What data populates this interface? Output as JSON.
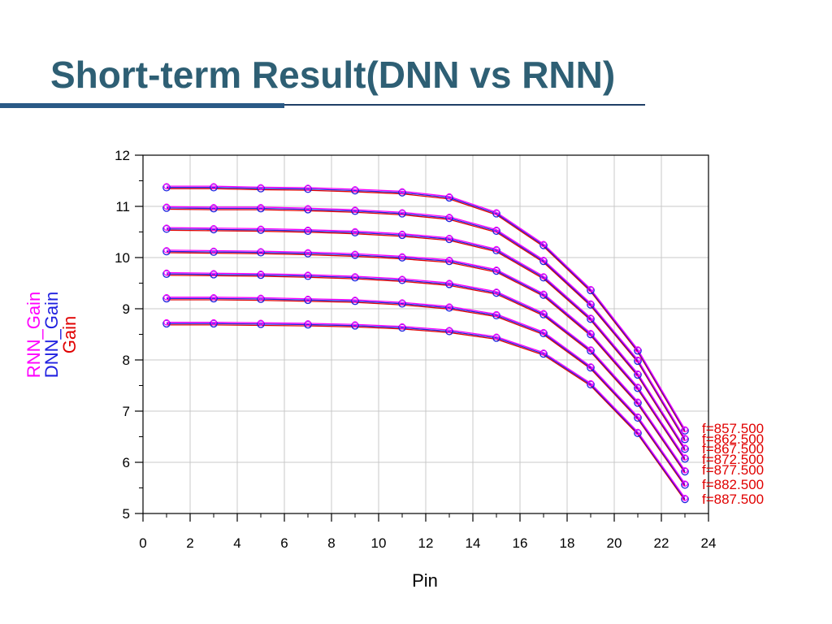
{
  "slide": {
    "title": "Short-term Result(DNN vs RNN)"
  },
  "colors": {
    "title": "#2e5f74",
    "rnn": "#ff00ff",
    "dnn": "#2020e0",
    "gain": "#e00000",
    "grid": "#c8c8c8"
  },
  "chart_data": {
    "type": "line",
    "xlabel": "Pin",
    "ylabel_entries": [
      {
        "text": "RNN_Gain",
        "color": "#ff00ff"
      },
      {
        "text": "DNN_Gain",
        "color": "#2020e0"
      },
      {
        "text": "Gain",
        "color": "#e00000"
      }
    ],
    "xlim": [
      0,
      24
    ],
    "ylim": [
      5,
      12
    ],
    "xticks": [
      0,
      2,
      4,
      6,
      8,
      10,
      12,
      14,
      16,
      18,
      20,
      22,
      24
    ],
    "yticks": [
      5,
      6,
      7,
      8,
      9,
      10,
      11,
      12
    ],
    "grid": true,
    "x": [
      1,
      3,
      5,
      7,
      9,
      11,
      13,
      15,
      17,
      19,
      21,
      23
    ],
    "series": [
      {
        "name": "f=857.500",
        "values": [
          11.37,
          11.37,
          11.35,
          11.34,
          11.31,
          11.27,
          11.17,
          10.86,
          10.24,
          9.36,
          8.18,
          6.62
        ]
      },
      {
        "name": "f=862.500",
        "values": [
          10.97,
          10.96,
          10.96,
          10.94,
          10.91,
          10.86,
          10.77,
          10.52,
          9.93,
          9.08,
          7.98,
          6.45
        ]
      },
      {
        "name": "f=867.500",
        "values": [
          10.56,
          10.55,
          10.54,
          10.52,
          10.49,
          10.44,
          10.36,
          10.14,
          9.61,
          8.8,
          7.71,
          6.26
        ]
      },
      {
        "name": "f=872.500",
        "values": [
          10.12,
          10.11,
          10.1,
          10.08,
          10.05,
          10.0,
          9.93,
          9.74,
          9.27,
          8.5,
          7.45,
          6.07
        ]
      },
      {
        "name": "f=877.500",
        "values": [
          9.68,
          9.67,
          9.66,
          9.64,
          9.61,
          9.56,
          9.48,
          9.31,
          8.89,
          8.18,
          7.16,
          5.82
        ]
      },
      {
        "name": "f=882.500",
        "values": [
          9.2,
          9.2,
          9.19,
          9.17,
          9.15,
          9.1,
          9.02,
          8.87,
          8.52,
          7.85,
          6.87,
          5.56
        ]
      },
      {
        "name": "f=887.500",
        "values": [
          8.71,
          8.71,
          8.7,
          8.69,
          8.67,
          8.63,
          8.56,
          8.43,
          8.12,
          7.52,
          6.57,
          5.28
        ]
      }
    ],
    "series_labels": [
      "f=857.500",
      "f=862.500",
      "f=867.500",
      "f=872.500",
      "f=877.500",
      "f=882.500",
      "f=887.500"
    ]
  }
}
